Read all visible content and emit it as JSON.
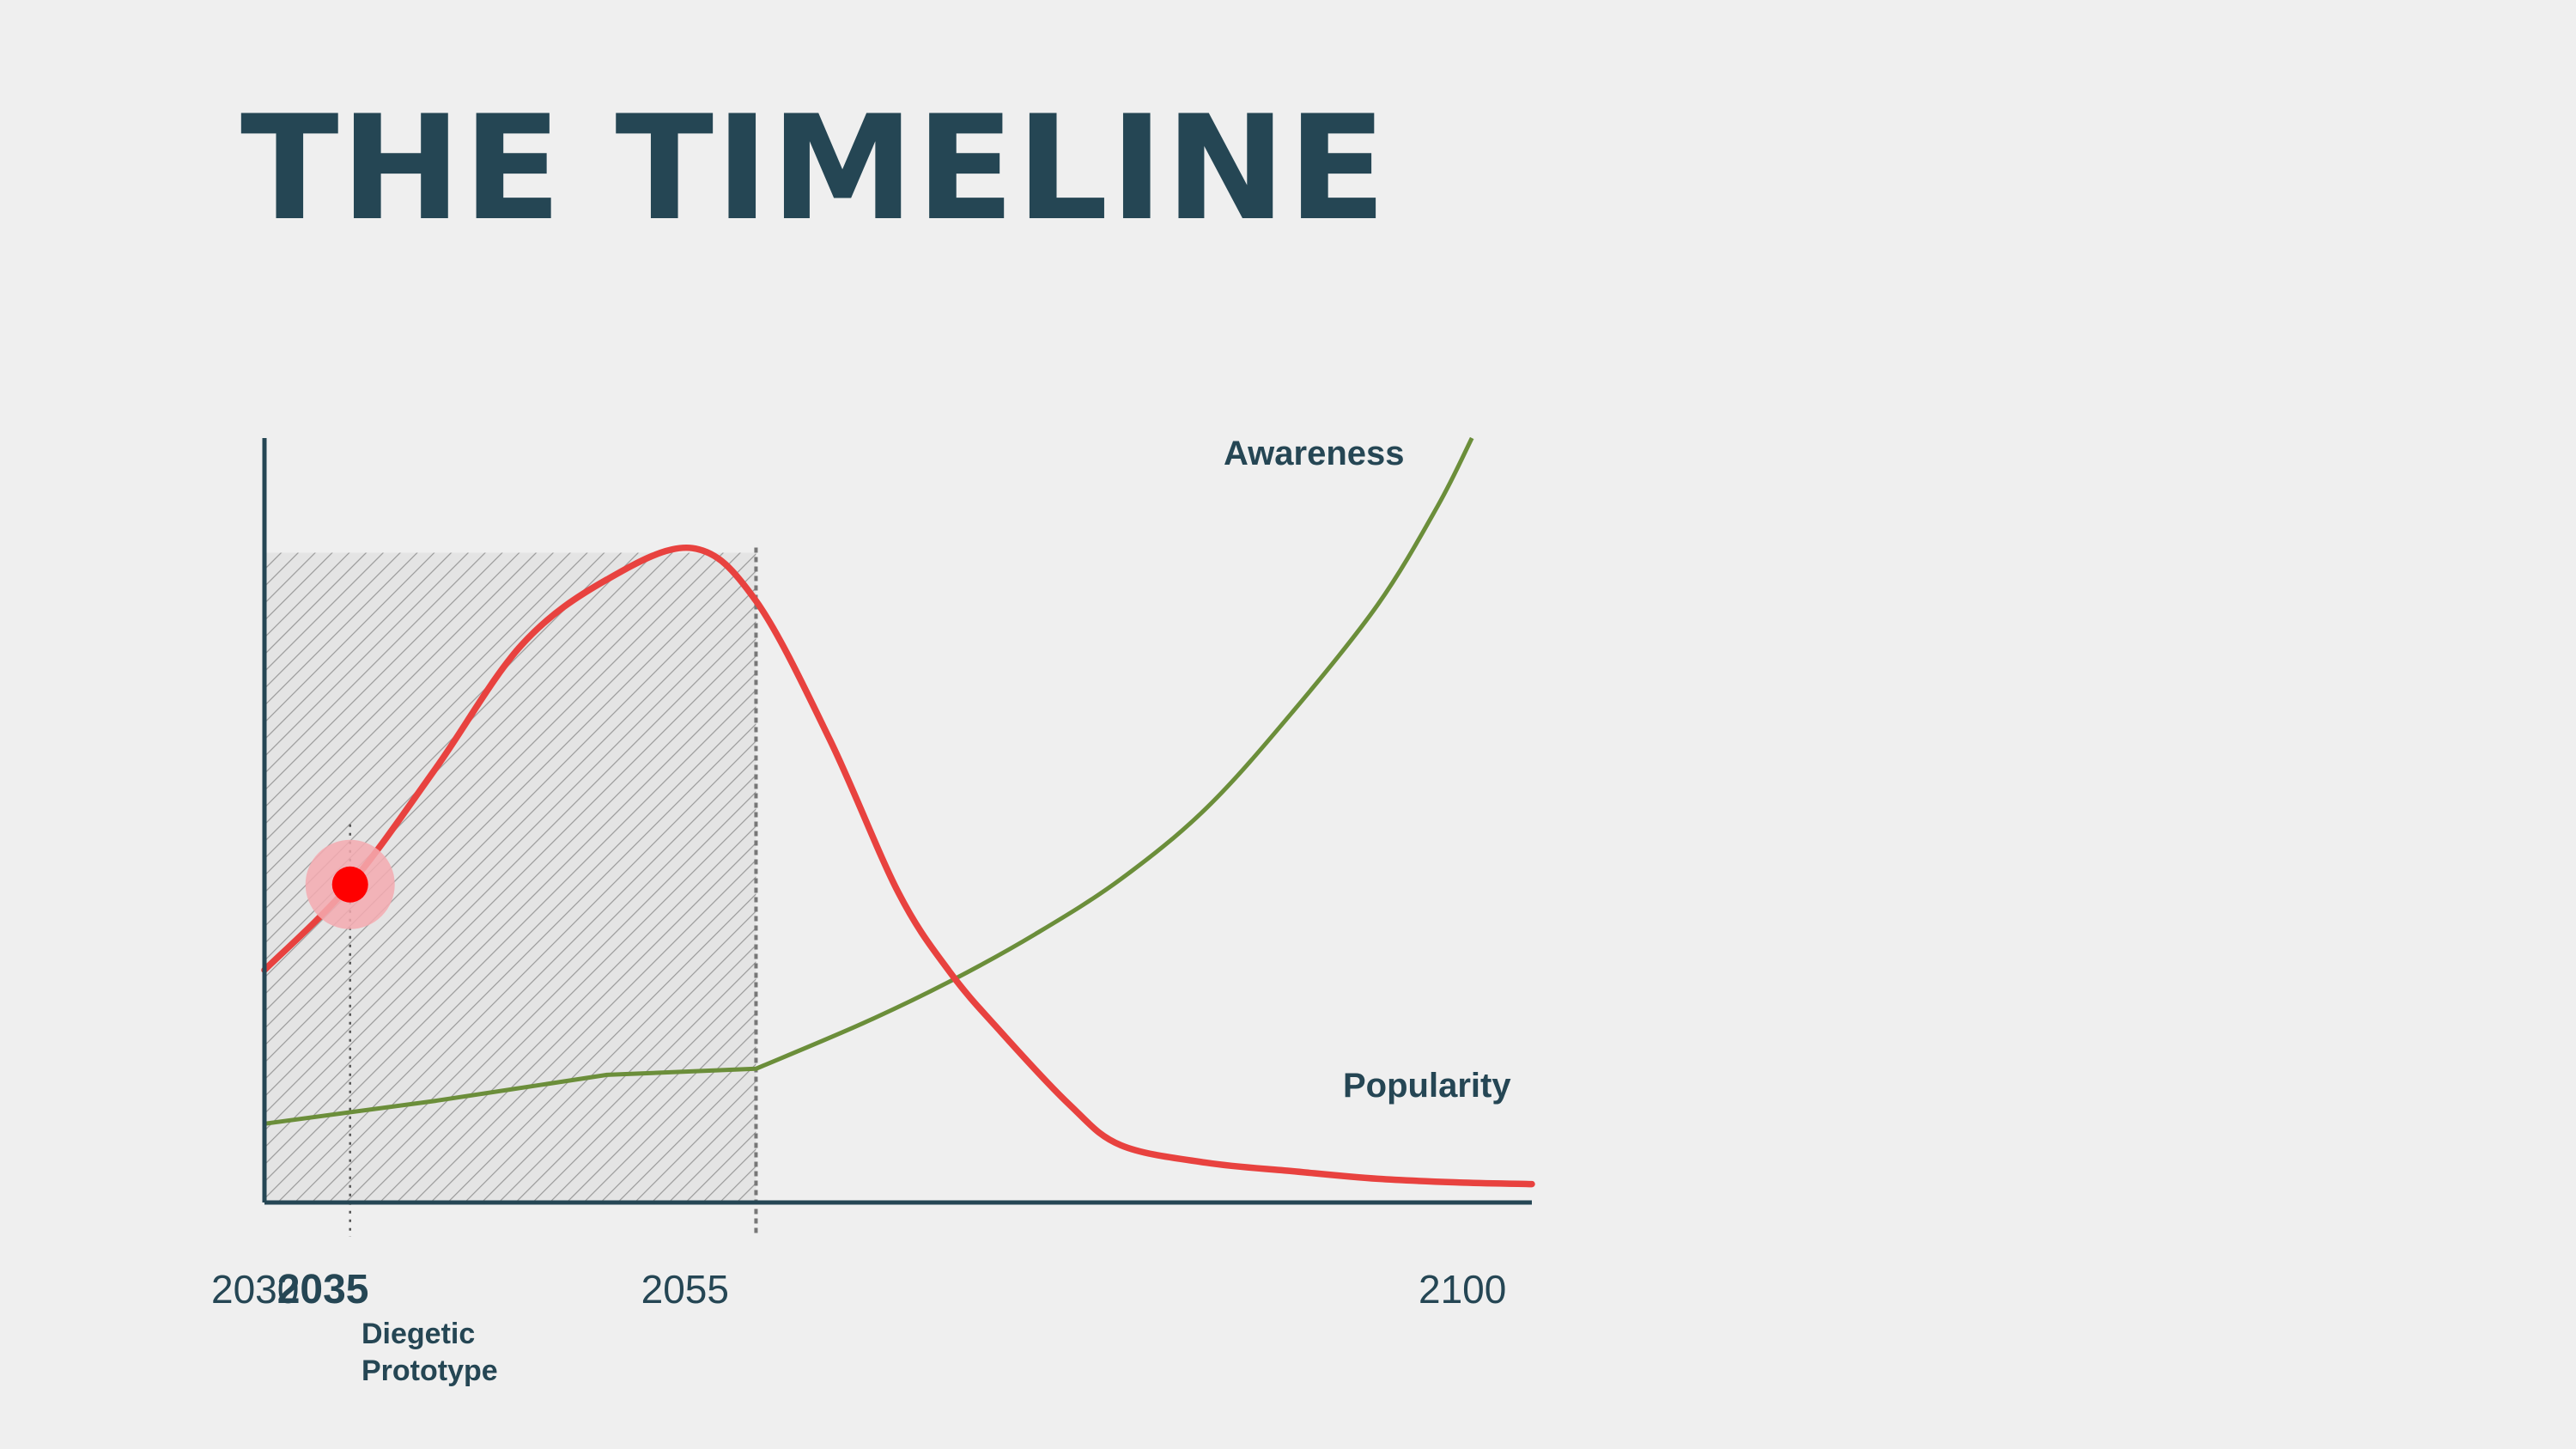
{
  "slide": {
    "title": "THE TIMELINE"
  },
  "colors": {
    "background": "#efefef",
    "text": "#254654",
    "axis": "#254654",
    "red_curve": "#e8423f",
    "green_curve": "#6b8e3a",
    "marker": "#ff0000",
    "marker_halo": "#f4aab0",
    "hatch": "#9a9a9a",
    "hatch_bg": "#e4e4e4"
  },
  "chart_data": {
    "type": "line",
    "title": "",
    "xlabel": "",
    "ylabel": "",
    "xlim": [
      2030,
      2104
    ],
    "ylim": [
      0,
      100
    ],
    "grid": false,
    "x_ticks": [
      {
        "value": 2030,
        "label": "2030",
        "bold": false
      },
      {
        "value": 2035,
        "label": "2035",
        "bold": true
      },
      {
        "value": 2055,
        "label": "2055",
        "bold": false
      },
      {
        "value": 2100,
        "label": "2100",
        "bold": false
      }
    ],
    "series": [
      {
        "name": "Awareness",
        "color": "#6b8e3a",
        "x": [
          2030,
          2040,
          2050,
          2058.7,
          2065,
          2070,
          2075,
          2080,
          2085,
          2090,
          2095,
          2098.5,
          2100.5
        ],
        "y": [
          10.3,
          13.3,
          16.7,
          17.5,
          23.5,
          28.9,
          35.1,
          42.3,
          51.6,
          64.1,
          78.2,
          91.1,
          100
        ]
      },
      {
        "name": "Popularity",
        "color": "#e8423f",
        "x": [
          2030,
          2035,
          2040,
          2045,
          2050,
          2055,
          2058.7,
          2063,
          2067,
          2070,
          2073,
          2077,
          2080,
          2085,
          2090,
          2095,
          2100,
          2104
        ],
        "y": [
          30.4,
          41.6,
          56.8,
          72.9,
          81.5,
          85.6,
          78.7,
          60.6,
          40.6,
          30.2,
          22.3,
          12.8,
          7.5,
          5.2,
          4.1,
          3.1,
          2.6,
          2.4
        ]
      }
    ],
    "highlight_region": {
      "x_start": 2030,
      "x_end": 2058.7,
      "y_top": 85
    },
    "marker_point": {
      "x": 2035,
      "y": 41.6
    },
    "annotation": {
      "year": "2035",
      "line1": "Diegetic",
      "line2": "Prototype"
    },
    "series_labels": {
      "awareness": "Awareness",
      "popularity": "Popularity"
    }
  }
}
